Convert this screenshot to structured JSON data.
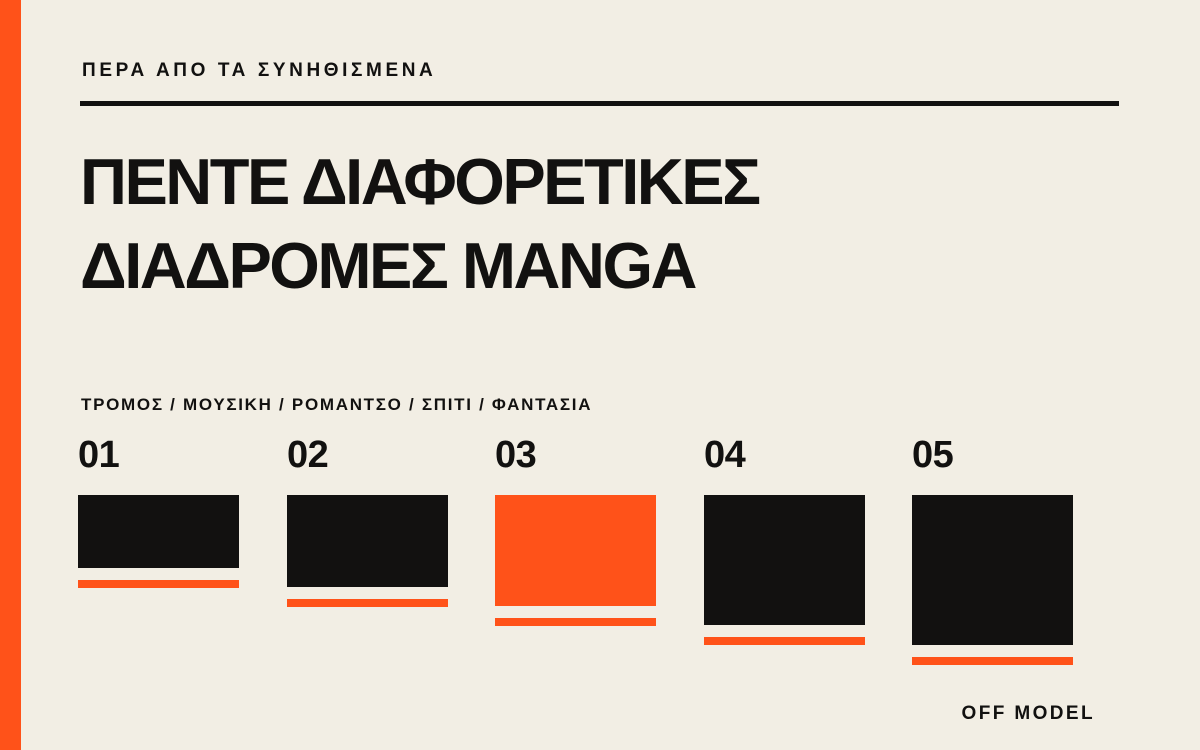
{
  "header": {
    "kicker": "ΠΕΡΑ ΑΠΟ ΤΑ ΣΥΝΗΘΙΣΜΕΝΑ",
    "title_line1": "ΠΕΝΤΕ ΔΙΑΦΟΡΕΤΙΚΕΣ",
    "title_line2": "ΔΙΑΔΡΟΜΕΣ MANGA"
  },
  "tags": "ΤΡΟΜΟΣ / ΜΟΥΣΙΚΗ / ΡΟΜΑΝΤΣΟ / ΣΠΙΤΙ / ΦΑΝΤΑΣΙΑ",
  "panels": [
    {
      "number": "01",
      "color": "#121110"
    },
    {
      "number": "02",
      "color": "#121110"
    },
    {
      "number": "03",
      "color": "#ff5219"
    },
    {
      "number": "04",
      "color": "#121110"
    },
    {
      "number": "05",
      "color": "#121110"
    }
  ],
  "accent_color": "#ff5219",
  "brand": "OFF MODEL"
}
